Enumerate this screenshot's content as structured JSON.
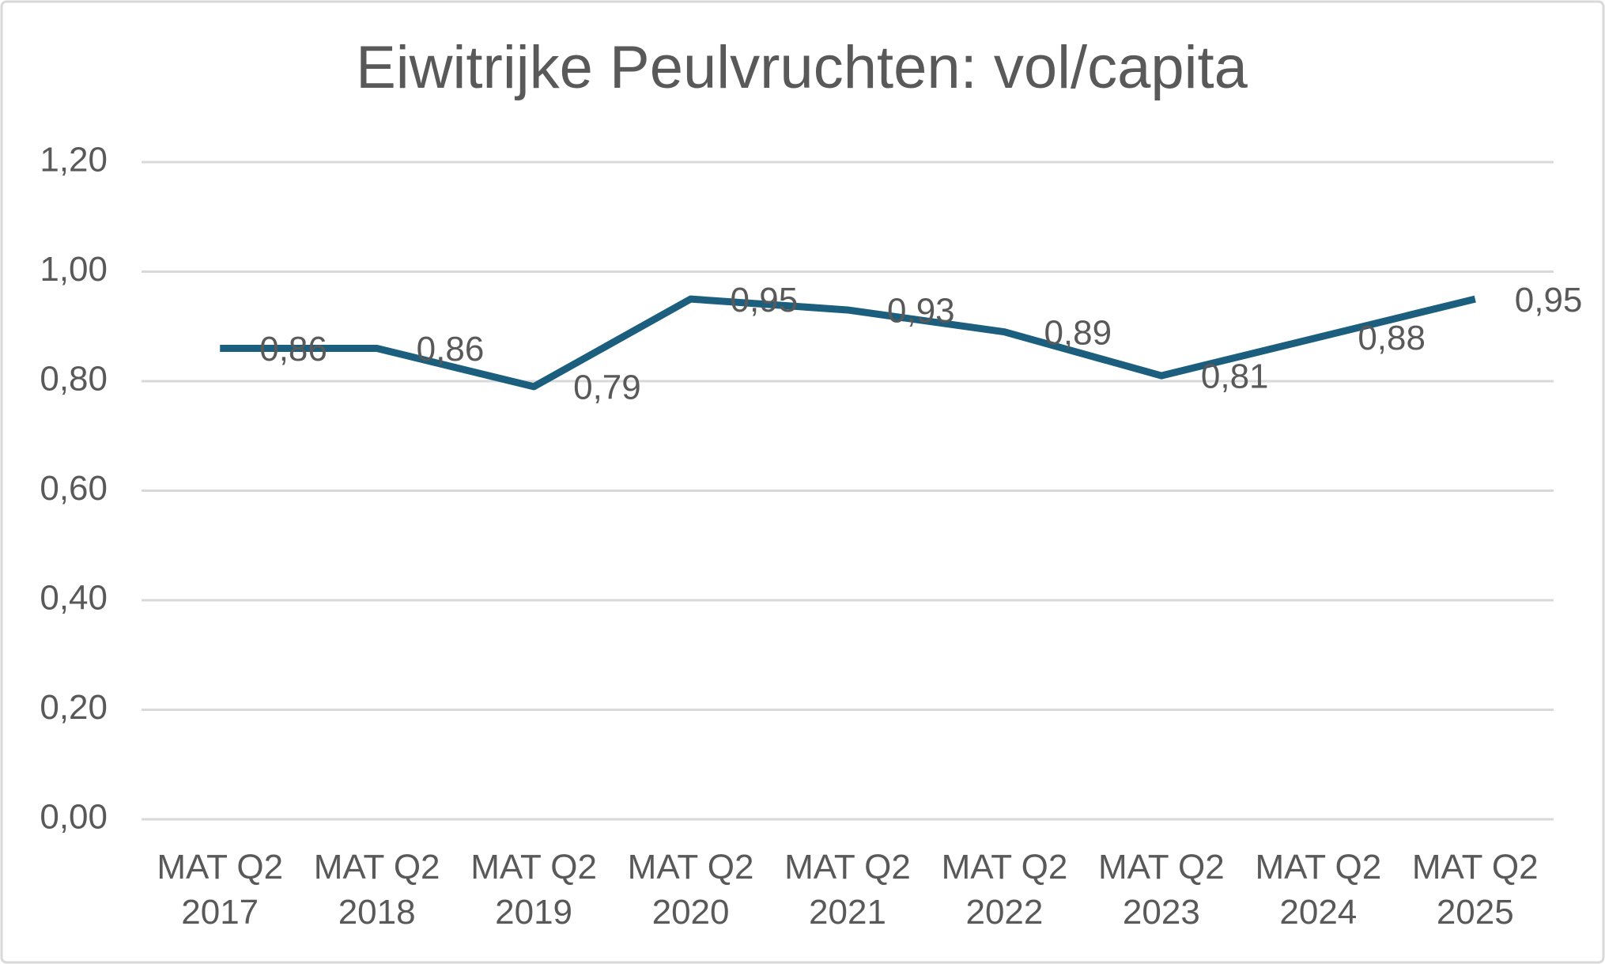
{
  "chart_data": {
    "type": "line",
    "title": "Eiwitrijke Peulvruchten: vol/capita",
    "categories": [
      "MAT Q2 2017",
      "MAT Q2 2018",
      "MAT Q2 2019",
      "MAT Q2 2020",
      "MAT Q2 2021",
      "MAT Q2 2022",
      "MAT Q2 2023",
      "MAT Q2 2024",
      "MAT Q2 2025"
    ],
    "values": [
      0.86,
      0.86,
      0.79,
      0.95,
      0.93,
      0.89,
      0.81,
      0.88,
      0.95
    ],
    "value_labels": [
      "0,86",
      "0,86",
      "0,79",
      "0,95",
      "0,93",
      "0,89",
      "0,81",
      "0,88",
      "0,95"
    ],
    "color": "#1b5e7e",
    "ylim": [
      0,
      1.2
    ],
    "yticks": [
      {
        "value": 0,
        "label": "0,00"
      },
      {
        "value": 0.2,
        "label": "0,20"
      },
      {
        "value": 0.4,
        "label": "0,40"
      },
      {
        "value": 0.6,
        "label": "0,60"
      },
      {
        "value": 0.8,
        "label": "0,80"
      },
      {
        "value": 1,
        "label": "1,00"
      },
      {
        "value": 1.2,
        "label": "1,20"
      }
    ],
    "grid": true
  }
}
